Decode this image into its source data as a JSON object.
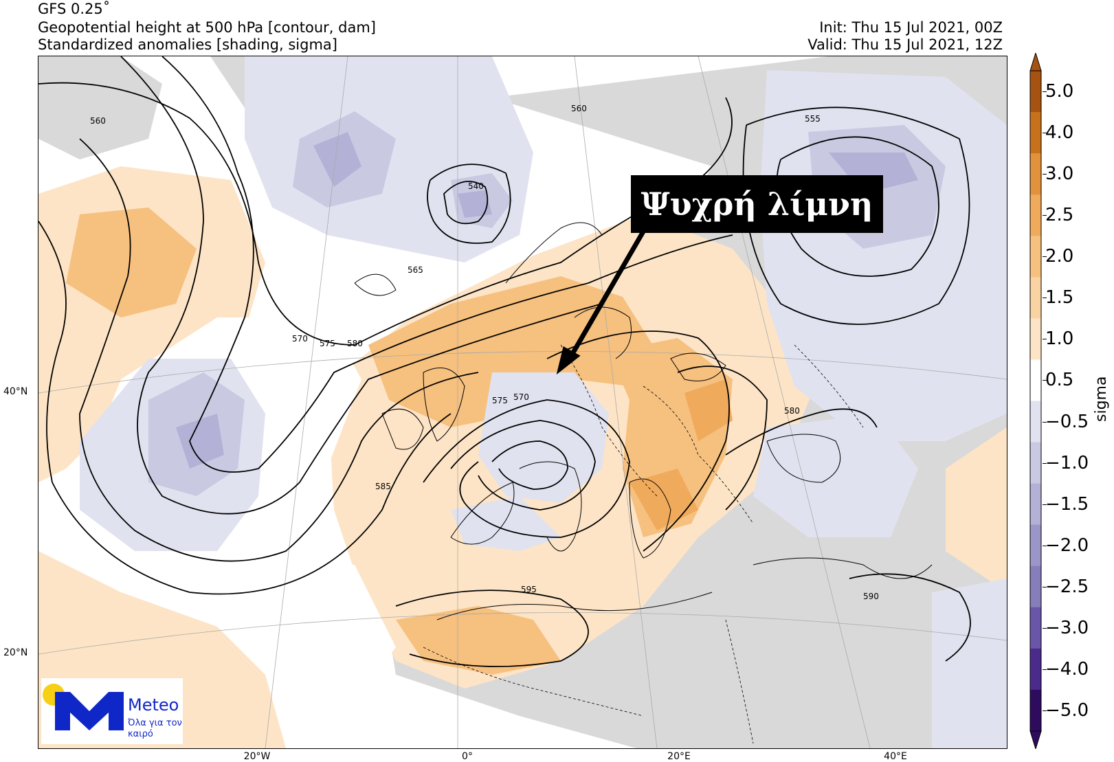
{
  "header": {
    "model": "GFS 0.25˚",
    "field_contour": "Geopotential height at 500 hPa [contour, dam]",
    "field_shading": "Standardized anomalies [shading, sigma]",
    "init": "Init: Thu 15 Jul 2021, 00Z",
    "valid": "Valid: Thu 15 Jul 2021, 12Z"
  },
  "map": {
    "lat_labels": [
      "40°N",
      "20°N"
    ],
    "lon_labels": [
      "20°W",
      "0°",
      "20°E",
      "40°E"
    ],
    "contour_labels": [
      "560",
      "560",
      "540",
      "555",
      "565",
      "570",
      "575",
      "580",
      "575",
      "570",
      "580",
      "585",
      "595",
      "590"
    ],
    "annotation": "Ψυχρή λίμνη"
  },
  "colorbar": {
    "label": "sigma",
    "ticks": [
      "5.0",
      "4.0",
      "3.0",
      "2.5",
      "2.0",
      "1.5",
      "1.0",
      "0.5",
      "−0.5",
      "−1.0",
      "−1.5",
      "−2.0",
      "−2.5",
      "−3.0",
      "−4.0",
      "−5.0"
    ],
    "colors": [
      "#a65210",
      "#c8711c",
      "#e2913c",
      "#f0aa5c",
      "#f6c07f",
      "#fad3a2",
      "#fde4c6",
      "#ffffff",
      "#e1e2ef",
      "#c9c9e2",
      "#b3b1d5",
      "#9a96c7",
      "#857ebb",
      "#6a56a8",
      "#4a2a8a",
      "#2e0b5e"
    ]
  },
  "logo": {
    "name": "Meteo",
    "tagline": "Όλα για τον καιρό",
    "colors": {
      "brand": "#1027c8",
      "sun": "#f7cf14"
    }
  },
  "colors": {
    "positive_anomaly": "#f6c07f",
    "negative_anomaly": "#c9c9e2",
    "land_neutral": "#d9d9d9",
    "annotation_bg": "#000000"
  }
}
